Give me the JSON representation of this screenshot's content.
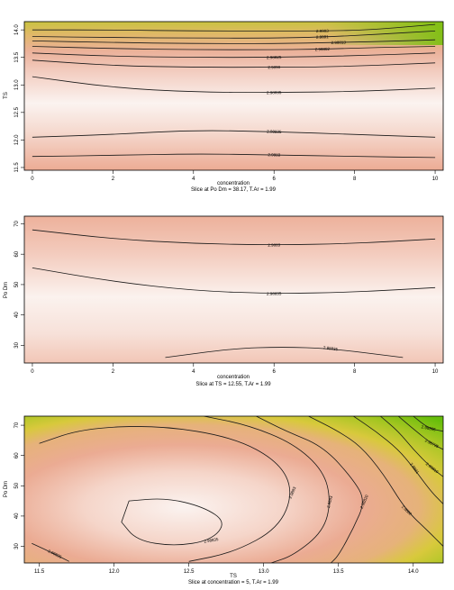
{
  "chart_data": [
    {
      "type": "heatmap",
      "subtype": "contour",
      "xlabel": "concentration",
      "subtitle": "Slice at Po Dm = 38.17, T.Ar = 1.99",
      "ylabel": "TS",
      "xlim": [
        0,
        10
      ],
      "ylim": [
        11.45,
        14.15
      ],
      "x_ticks": [
        "0",
        "2",
        "4",
        "6",
        "8",
        "10"
      ],
      "y_ticks": [
        "11.5",
        "12.0",
        "12.5",
        "13.0",
        "13.5",
        "14.0"
      ],
      "colors": {
        "low": "#fbf5f3",
        "mid": "#eca990",
        "high": "#d8c93c",
        "top": "#78c00e"
      },
      "contours": [
        {
          "label": "2.9903",
          "points": [
            [
              0,
              14.0
            ],
            [
              2,
              14.0
            ],
            [
              4,
              13.98
            ],
            [
              6,
              13.98
            ],
            [
              7.2,
              13.98
            ],
            [
              8.4,
              14.0
            ],
            [
              10,
              14.1
            ]
          ]
        },
        {
          "label": "2.9891",
          "points": [
            [
              0,
              13.88
            ],
            [
              2,
              13.86
            ],
            [
              4,
              13.85
            ],
            [
              6,
              13.85
            ],
            [
              7.2,
              13.87
            ],
            [
              8.6,
              13.92
            ],
            [
              10,
              13.98
            ]
          ]
        },
        {
          "label": "2.98813",
          "points": [
            [
              0,
              13.8
            ],
            [
              2,
              13.77
            ],
            [
              4,
              13.75
            ],
            [
              6,
              13.75
            ],
            [
              7.6,
              13.77
            ],
            [
              9.2,
              13.8
            ],
            [
              10,
              13.82
            ]
          ]
        },
        {
          "label": "2.98802",
          "points": [
            [
              0,
              13.7
            ],
            [
              2,
              13.66
            ],
            [
              4,
              13.64
            ],
            [
              6,
              13.64
            ],
            [
              7.2,
              13.65
            ],
            [
              8.6,
              13.68
            ],
            [
              10,
              13.7
            ]
          ]
        },
        {
          "label": "2.98825",
          "points": [
            [
              0,
              13.58
            ],
            [
              2,
              13.52
            ],
            [
              4,
              13.5
            ],
            [
              6,
              13.5
            ],
            [
              8,
              13.53
            ],
            [
              10,
              13.58
            ]
          ]
        },
        {
          "label": "2.9890",
          "points": [
            [
              0,
              13.45
            ],
            [
              2,
              13.35
            ],
            [
              4,
              13.32
            ],
            [
              6,
              13.32
            ],
            [
              7.6,
              13.33
            ],
            [
              10,
              13.4
            ]
          ]
        },
        {
          "label": "2.98835",
          "points": [
            [
              0,
              13.15
            ],
            [
              2,
              12.95
            ],
            [
              4,
              12.87
            ],
            [
              6,
              12.86
            ],
            [
              8,
              12.88
            ],
            [
              10,
              12.94
            ]
          ]
        },
        {
          "label": "2.98835",
          "points": [
            [
              0,
              12.05
            ],
            [
              2,
              12.1
            ],
            [
              4,
              12.18
            ],
            [
              6,
              12.15
            ],
            [
              8,
              12.1
            ],
            [
              10,
              12.05
            ]
          ]
        },
        {
          "label": "2.9883",
          "points": [
            [
              0,
              11.7
            ],
            [
              2,
              11.72
            ],
            [
              4,
              11.75
            ],
            [
              6,
              11.73
            ],
            [
              8,
              11.7
            ],
            [
              10,
              11.68
            ]
          ]
        }
      ]
    },
    {
      "type": "heatmap",
      "subtype": "contour",
      "xlabel": "concentration",
      "subtitle": "Slice at TS = 12.55, T.Ar = 1.99",
      "ylabel": "Po Dm",
      "xlim": [
        0,
        10
      ],
      "ylim": [
        24.2,
        72.5
      ],
      "x_ticks": [
        "0",
        "2",
        "4",
        "6",
        "8",
        "10"
      ],
      "y_ticks": [
        "30",
        "40",
        "50",
        "60",
        "70"
      ],
      "colors": {
        "low": "#fbf5f3",
        "mid": "#eca990"
      },
      "contours": [
        {
          "label": "2.9883",
          "points": [
            [
              0,
              68
            ],
            [
              2,
              65
            ],
            [
              4,
              63.5
            ],
            [
              6,
              63
            ],
            [
              8,
              63.5
            ],
            [
              10,
              65
            ]
          ]
        },
        {
          "label": "2.98835",
          "points": [
            [
              0,
              55.5
            ],
            [
              2,
              51
            ],
            [
              4,
              48
            ],
            [
              6,
              47
            ],
            [
              8,
              47.5
            ],
            [
              10,
              49
            ]
          ]
        },
        {
          "label": "2.98835",
          "points": [
            [
              3.3,
              26
            ],
            [
              5,
              29
            ],
            [
              6.2,
              29.5
            ],
            [
              7.4,
              29
            ],
            [
              9.2,
              26
            ]
          ]
        }
      ]
    },
    {
      "type": "heatmap",
      "subtype": "contour",
      "xlabel": "TS",
      "subtitle": "Slice at concentration = 5, T.Ar = 1.99",
      "ylabel": "Po Dm",
      "xlim": [
        11.4,
        14.2
      ],
      "ylim": [
        24.5,
        73
      ],
      "x_ticks": [
        "11.5",
        "12.0",
        "12.5",
        "13.0",
        "13.5",
        "14.0"
      ],
      "y_ticks": [
        "30",
        "40",
        "50",
        "60",
        "70"
      ],
      "colors": {
        "low": "#fbf5f3",
        "mid": "#eca990",
        "high": "#d8c93c",
        "top": "#78c00e"
      },
      "contours": [
        {
          "label": "2.98835",
          "closed": true,
          "points": [
            [
              12.1,
              45
            ],
            [
              12.35,
              46
            ],
            [
              12.6,
              43
            ],
            [
              12.75,
              38
            ],
            [
              12.65,
              32
            ],
            [
              12.4,
              30
            ],
            [
              12.15,
              32
            ],
            [
              12.05,
              38
            ]
          ]
        },
        {
          "label": "2.9883",
          "points": [
            [
              11.5,
              64
            ],
            [
              11.8,
              69
            ],
            [
              12.3,
              70
            ],
            [
              12.8,
              66
            ],
            [
              13.1,
              58
            ],
            [
              13.2,
              48
            ],
            [
              13.1,
              36
            ],
            [
              12.8,
              28
            ],
            [
              12.5,
              25
            ]
          ]
        },
        {
          "label": "2.98825",
          "points": [
            [
              11.45,
              31
            ],
            [
              11.6,
              27.5
            ],
            [
              11.7,
              25
            ]
          ]
        },
        {
          "label": "2.9883",
          "points": [
            [
              12.6,
              73
            ],
            [
              12.9,
              70
            ],
            [
              13.2,
              64
            ],
            [
              13.4,
              55
            ],
            [
              13.45,
              45
            ],
            [
              13.4,
              35
            ],
            [
              13.2,
              27
            ],
            [
              13.05,
              24.5
            ]
          ]
        },
        {
          "label": "2.98820",
          "points": [
            [
              12.95,
              73
            ],
            [
              13.15,
              68
            ],
            [
              13.4,
              63
            ],
            [
              13.6,
              52
            ],
            [
              13.68,
              45
            ],
            [
              13.6,
              36
            ],
            [
              13.5,
              27
            ],
            [
              13.45,
              24.5
            ]
          ]
        },
        {
          "label": "2.9882",
          "points": [
            [
              13.3,
              73
            ],
            [
              13.5,
              68
            ],
            [
              13.65,
              63
            ],
            [
              13.8,
              54
            ],
            [
              13.95,
              42
            ],
            [
              14.1,
              35
            ],
            [
              14.2,
              30
            ]
          ]
        },
        {
          "label": "2.9881",
          "points": [
            [
              13.6,
              73
            ],
            [
              13.75,
              68
            ],
            [
              13.9,
              62
            ],
            [
              14.0,
              56
            ],
            [
              14.12,
              48
            ],
            [
              14.2,
              44
            ]
          ]
        },
        {
          "label": "2.98810",
          "points": [
            [
              13.78,
              73
            ],
            [
              13.9,
              68
            ],
            [
              14.0,
              62
            ],
            [
              14.12,
              56
            ],
            [
              14.2,
              53
            ]
          ]
        },
        {
          "label": "2.98795",
          "points": [
            [
              13.9,
              73
            ],
            [
              14.02,
              68
            ],
            [
              14.12,
              64
            ],
            [
              14.2,
              62
            ]
          ]
        },
        {
          "label": "2.98805",
          "points": [
            [
              14.0,
              73
            ],
            [
              14.1,
              69
            ],
            [
              14.2,
              68
            ]
          ]
        }
      ]
    }
  ]
}
